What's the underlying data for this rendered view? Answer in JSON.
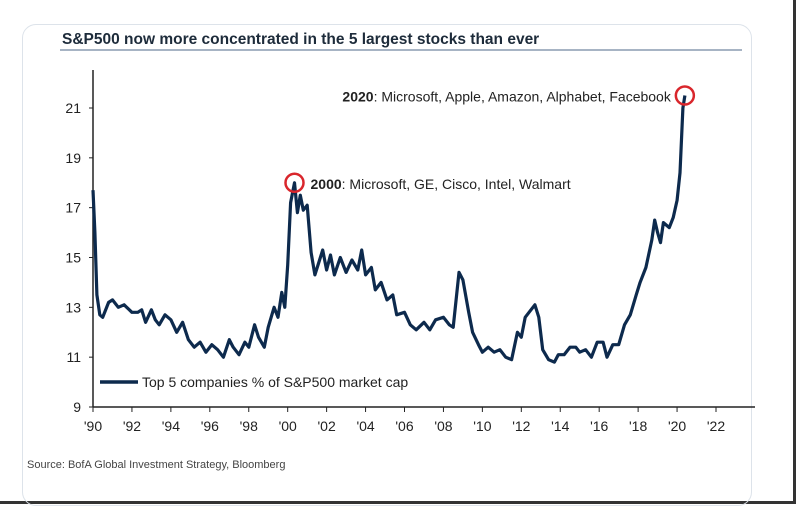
{
  "chart_data": {
    "type": "line",
    "title": "S&P500 now more concentrated in the 5 largest stocks than ever",
    "xlabel": "",
    "ylabel": "",
    "xlim": [
      1990,
      2023.5
    ],
    "ylim": [
      9,
      22.5
    ],
    "yticks": [
      "9",
      "11",
      "13",
      "15",
      "17",
      "19",
      "21"
    ],
    "xticks": [
      "'90",
      "'92",
      "'94",
      "'96",
      "'98",
      "'00",
      "'02",
      "'04",
      "'06",
      "'08",
      "'10",
      "'12",
      "'14",
      "'16",
      "'18",
      "'20",
      "'22"
    ],
    "grid": false,
    "legend": "bottom-left",
    "series": [
      {
        "name": "Top 5 companies % of S&P500 market cap",
        "color": "#0d2a4d",
        "x": [
          1990.0,
          1990.1,
          1990.2,
          1990.35,
          1990.5,
          1990.8,
          1991.0,
          1991.3,
          1991.6,
          1992.0,
          1992.3,
          1992.5,
          1992.7,
          1993.0,
          1993.2,
          1993.4,
          1993.7,
          1994.0,
          1994.3,
          1994.6,
          1994.9,
          1995.2,
          1995.5,
          1995.8,
          1996.1,
          1996.4,
          1996.7,
          1997.0,
          1997.2,
          1997.5,
          1997.8,
          1998.0,
          1998.3,
          1998.5,
          1998.8,
          1999.0,
          1999.3,
          1999.5,
          1999.7,
          1999.85,
          2000.0,
          2000.15,
          2000.35,
          2000.5,
          2000.65,
          2000.8,
          2001.0,
          2001.2,
          2001.4,
          2001.6,
          2001.8,
          2002.0,
          2002.2,
          2002.4,
          2002.7,
          2003.0,
          2003.3,
          2003.6,
          2003.8,
          2004.0,
          2004.3,
          2004.5,
          2004.8,
          2005.1,
          2005.4,
          2005.6,
          2006.0,
          2006.3,
          2006.6,
          2007.0,
          2007.3,
          2007.6,
          2008.0,
          2008.3,
          2008.5,
          2008.8,
          2009.0,
          2009.3,
          2009.5,
          2009.8,
          2010.0,
          2010.3,
          2010.6,
          2010.9,
          2011.2,
          2011.5,
          2011.8,
          2012.0,
          2012.2,
          2012.5,
          2012.7,
          2012.9,
          2013.1,
          2013.4,
          2013.7,
          2013.9,
          2014.2,
          2014.5,
          2014.8,
          2015.0,
          2015.3,
          2015.6,
          2015.9,
          2016.2,
          2016.4,
          2016.7,
          2017.0,
          2017.3,
          2017.6,
          2017.9,
          2018.1,
          2018.4,
          2018.7,
          2018.85,
          2019.0,
          2019.15,
          2019.3,
          2019.6,
          2019.8,
          2020.0,
          2020.15,
          2020.3,
          2020.4
        ],
        "values": [
          17.7,
          16.0,
          13.5,
          12.7,
          12.6,
          13.2,
          13.3,
          13.0,
          13.1,
          12.8,
          12.8,
          12.9,
          12.4,
          12.9,
          12.5,
          12.3,
          12.7,
          12.5,
          12.0,
          12.4,
          11.7,
          11.4,
          11.6,
          11.2,
          11.5,
          11.3,
          11.0,
          11.7,
          11.4,
          11.1,
          11.6,
          11.4,
          12.3,
          11.8,
          11.4,
          12.2,
          13.0,
          12.6,
          13.6,
          13.0,
          14.7,
          17.2,
          18.0,
          16.8,
          17.5,
          16.9,
          17.1,
          15.2,
          14.3,
          14.8,
          15.3,
          14.5,
          15.1,
          14.3,
          15.0,
          14.4,
          14.9,
          14.5,
          15.3,
          14.3,
          14.6,
          13.7,
          14.0,
          13.3,
          13.5,
          12.7,
          12.8,
          12.3,
          12.1,
          12.4,
          12.1,
          12.5,
          12.6,
          12.3,
          12.2,
          14.4,
          14.1,
          12.8,
          12.0,
          11.5,
          11.2,
          11.4,
          11.2,
          11.3,
          11.0,
          10.9,
          12.0,
          11.8,
          12.6,
          12.9,
          13.1,
          12.6,
          11.3,
          10.9,
          10.8,
          11.1,
          11.1,
          11.4,
          11.4,
          11.2,
          11.3,
          11.0,
          11.6,
          11.6,
          11.0,
          11.5,
          11.5,
          12.3,
          12.7,
          13.5,
          14.0,
          14.6,
          15.7,
          16.5,
          16.0,
          15.6,
          16.4,
          16.2,
          16.6,
          17.3,
          18.4,
          21.0,
          21.5
        ]
      }
    ],
    "annotations": [
      {
        "year_label": "2020",
        "text": ": Microsoft, Apple, Amazon, Alphabet, Facebook",
        "x": 2020.4,
        "y": 21.5
      },
      {
        "year_label": "2000",
        "text": ": Microsoft, GE, Cisco, Intel, Walmart",
        "x": 2000.35,
        "y": 18.0
      }
    ],
    "highlight_color": "#d9262c",
    "source": "Source:  BofA Global Investment Strategy, Bloomberg"
  }
}
